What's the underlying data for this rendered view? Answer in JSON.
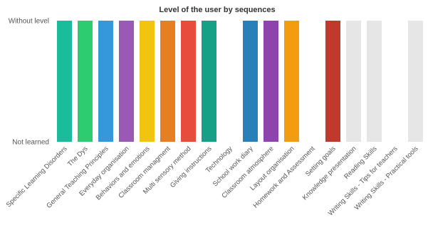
{
  "chart_data": {
    "type": "bar",
    "title": "Level of the user by sequences",
    "xlabel": "",
    "ylabel": "",
    "y_ticks": [
      "Not learned",
      "Without level"
    ],
    "y_values_legend": {
      "0": "Not learned",
      "1": "Without level"
    },
    "ylim": [
      0,
      1
    ],
    "grid": false,
    "categories": [
      "Specific Learning Disorders",
      "The Dys",
      "General Teaching Principles",
      "Everyday organisation",
      "Behaviors and emotions",
      "Classroom managment",
      "Multi sensory method",
      "Giving instructions",
      "Technology",
      "School work diary",
      "Classroom atmosphere",
      "Layout organisation",
      "Homework and Assessment",
      "Setting goals",
      "Knowledge presentation",
      "Reading Skills",
      "Writing Skills - Tips for teachers",
      "Writing Skills - Practical tools"
    ],
    "values": [
      1,
      1,
      1,
      1,
      1,
      1,
      1,
      1,
      0,
      1,
      1,
      1,
      0,
      1,
      1,
      1,
      0,
      1
    ],
    "colors": [
      "#1abc9c",
      "#2ecc71",
      "#3498db",
      "#9b59b6",
      "#f1c40f",
      "#e67e22",
      "#e74c3c",
      "#16a085",
      "#ffffff",
      "#2980b9",
      "#8e44ad",
      "#f39c12",
      "#ffffff",
      "#c0392b",
      "#e6e6e6",
      "#e6e6e6",
      "#ffffff",
      "#e6e6e6"
    ]
  }
}
